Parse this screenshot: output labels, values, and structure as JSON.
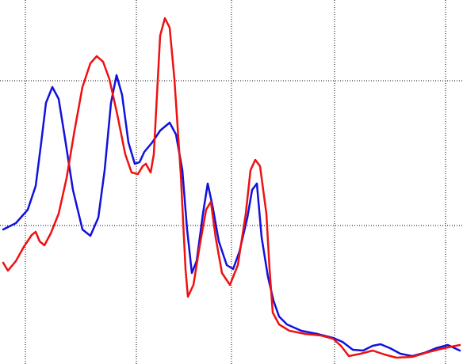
{
  "chart_data": {
    "type": "line",
    "xlim": [
      0,
      584
    ],
    "ylim": [
      0,
      460
    ],
    "xticks": [
      32,
      172,
      292,
      422,
      562
    ],
    "yticks": [
      175,
      358
    ],
    "grid": true,
    "series": [
      {
        "color": "#1111dd",
        "x": [
          4,
          20,
          35,
          45,
          52,
          58,
          66,
          74,
          82,
          92,
          104,
          114,
          124,
          132,
          140,
          147,
          154,
          162,
          170,
          176,
          182,
          192,
          202,
          214,
          222,
          230,
          236,
          242,
          248,
          256,
          262,
          268,
          276,
          286,
          294,
          302,
          312,
          318,
          324,
          330,
          338,
          345,
          352,
          362,
          380,
          400,
          420,
          432,
          445,
          458,
          470,
          480,
          492,
          505,
          520,
          535,
          550,
          565,
          580
        ],
        "values": [
          170,
          178,
          195,
          225,
          280,
          330,
          350,
          335,
          285,
          220,
          170,
          162,
          185,
          245,
          330,
          365,
          340,
          280,
          253,
          255,
          268,
          280,
          295,
          305,
          290,
          245,
          170,
          115,
          130,
          190,
          228,
          200,
          155,
          125,
          120,
          142,
          185,
          220,
          228,
          160,
          110,
          80,
          60,
          50,
          42,
          38,
          33,
          28,
          18,
          17,
          23,
          25,
          20,
          13,
          10,
          14,
          20,
          24,
          17
        ]
      },
      {
        "color": "#ee1111",
        "x": [
          4,
          10,
          20,
          30,
          40,
          45,
          50,
          56,
          64,
          74,
          84,
          94,
          104,
          114,
          122,
          130,
          138,
          148,
          158,
          166,
          174,
          180,
          184,
          190,
          194,
          198,
          202,
          208,
          214,
          220,
          228,
          234,
          237,
          244,
          252,
          260,
          266,
          272,
          280,
          290,
          300,
          310,
          316,
          322,
          328,
          336,
          340,
          344,
          352,
          365,
          385,
          405,
          420,
          430,
          440,
          455,
          470,
          485,
          500,
          520,
          540,
          560,
          580
        ],
        "values": [
          128,
          118,
          130,
          148,
          163,
          167,
          155,
          150,
          165,
          190,
          235,
          295,
          350,
          380,
          389,
          382,
          360,
          315,
          265,
          242,
          240,
          250,
          253,
          242,
          265,
          340,
          415,
          437,
          425,
          360,
          240,
          120,
          85,
          100,
          150,
          195,
          205,
          160,
          115,
          100,
          125,
          190,
          245,
          258,
          250,
          190,
          120,
          65,
          50,
          42,
          38,
          36,
          32,
          23,
          10,
          13,
          17,
          12,
          8,
          9,
          15,
          20,
          24
        ]
      }
    ]
  }
}
